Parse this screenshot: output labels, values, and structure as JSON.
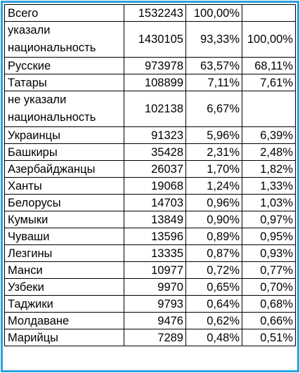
{
  "table": {
    "rows": [
      {
        "name": "Всего",
        "count": "1532243",
        "pct_total": "100,00%",
        "pct_specified": ""
      },
      {
        "name": "указали национальность",
        "count": "1430105",
        "pct_total": "93,33%",
        "pct_specified": "100,00%"
      },
      {
        "name": "Русские",
        "count": "973978",
        "pct_total": "63,57%",
        "pct_specified": "68,11%"
      },
      {
        "name": "Татары",
        "count": "108899",
        "pct_total": "7,11%",
        "pct_specified": "7,61%"
      },
      {
        "name": "не указали национальность",
        "count": "102138",
        "pct_total": "6,67%",
        "pct_specified": ""
      },
      {
        "name": "Украинцы",
        "count": "91323",
        "pct_total": "5,96%",
        "pct_specified": "6,39%"
      },
      {
        "name": "Башкиры",
        "count": "35428",
        "pct_total": "2,31%",
        "pct_specified": "2,48%"
      },
      {
        "name": "Азербайджанцы",
        "count": "26037",
        "pct_total": "1,70%",
        "pct_specified": "1,82%"
      },
      {
        "name": "Ханты",
        "count": "19068",
        "pct_total": "1,24%",
        "pct_specified": "1,33%"
      },
      {
        "name": "Белорусы",
        "count": "14703",
        "pct_total": "0,96%",
        "pct_specified": "1,03%"
      },
      {
        "name": "Кумыки",
        "count": "13849",
        "pct_total": "0,90%",
        "pct_specified": "0,97%"
      },
      {
        "name": "Чуваши",
        "count": "13596",
        "pct_total": "0,89%",
        "pct_specified": "0,95%"
      },
      {
        "name": "Лезгины",
        "count": "13335",
        "pct_total": "0,87%",
        "pct_specified": "0,93%"
      },
      {
        "name": "Манси",
        "count": "10977",
        "pct_total": "0,72%",
        "pct_specified": "0,77%"
      },
      {
        "name": "Узбеки",
        "count": "9970",
        "pct_total": "0,65%",
        "pct_specified": "0,70%"
      },
      {
        "name": "Таджики",
        "count": "9793",
        "pct_total": "0,64%",
        "pct_specified": "0,68%"
      },
      {
        "name": "Молдаване",
        "count": "9476",
        "pct_total": "0,62%",
        "pct_specified": "0,66%"
      },
      {
        "name": "Марийцы",
        "count": "7289",
        "pct_total": "0,48%",
        "pct_specified": "0,51%"
      }
    ]
  },
  "colors": {
    "frame_border": "#2fa0de",
    "grid_line": "#000000",
    "text": "#000000",
    "background": "#ffffff"
  }
}
